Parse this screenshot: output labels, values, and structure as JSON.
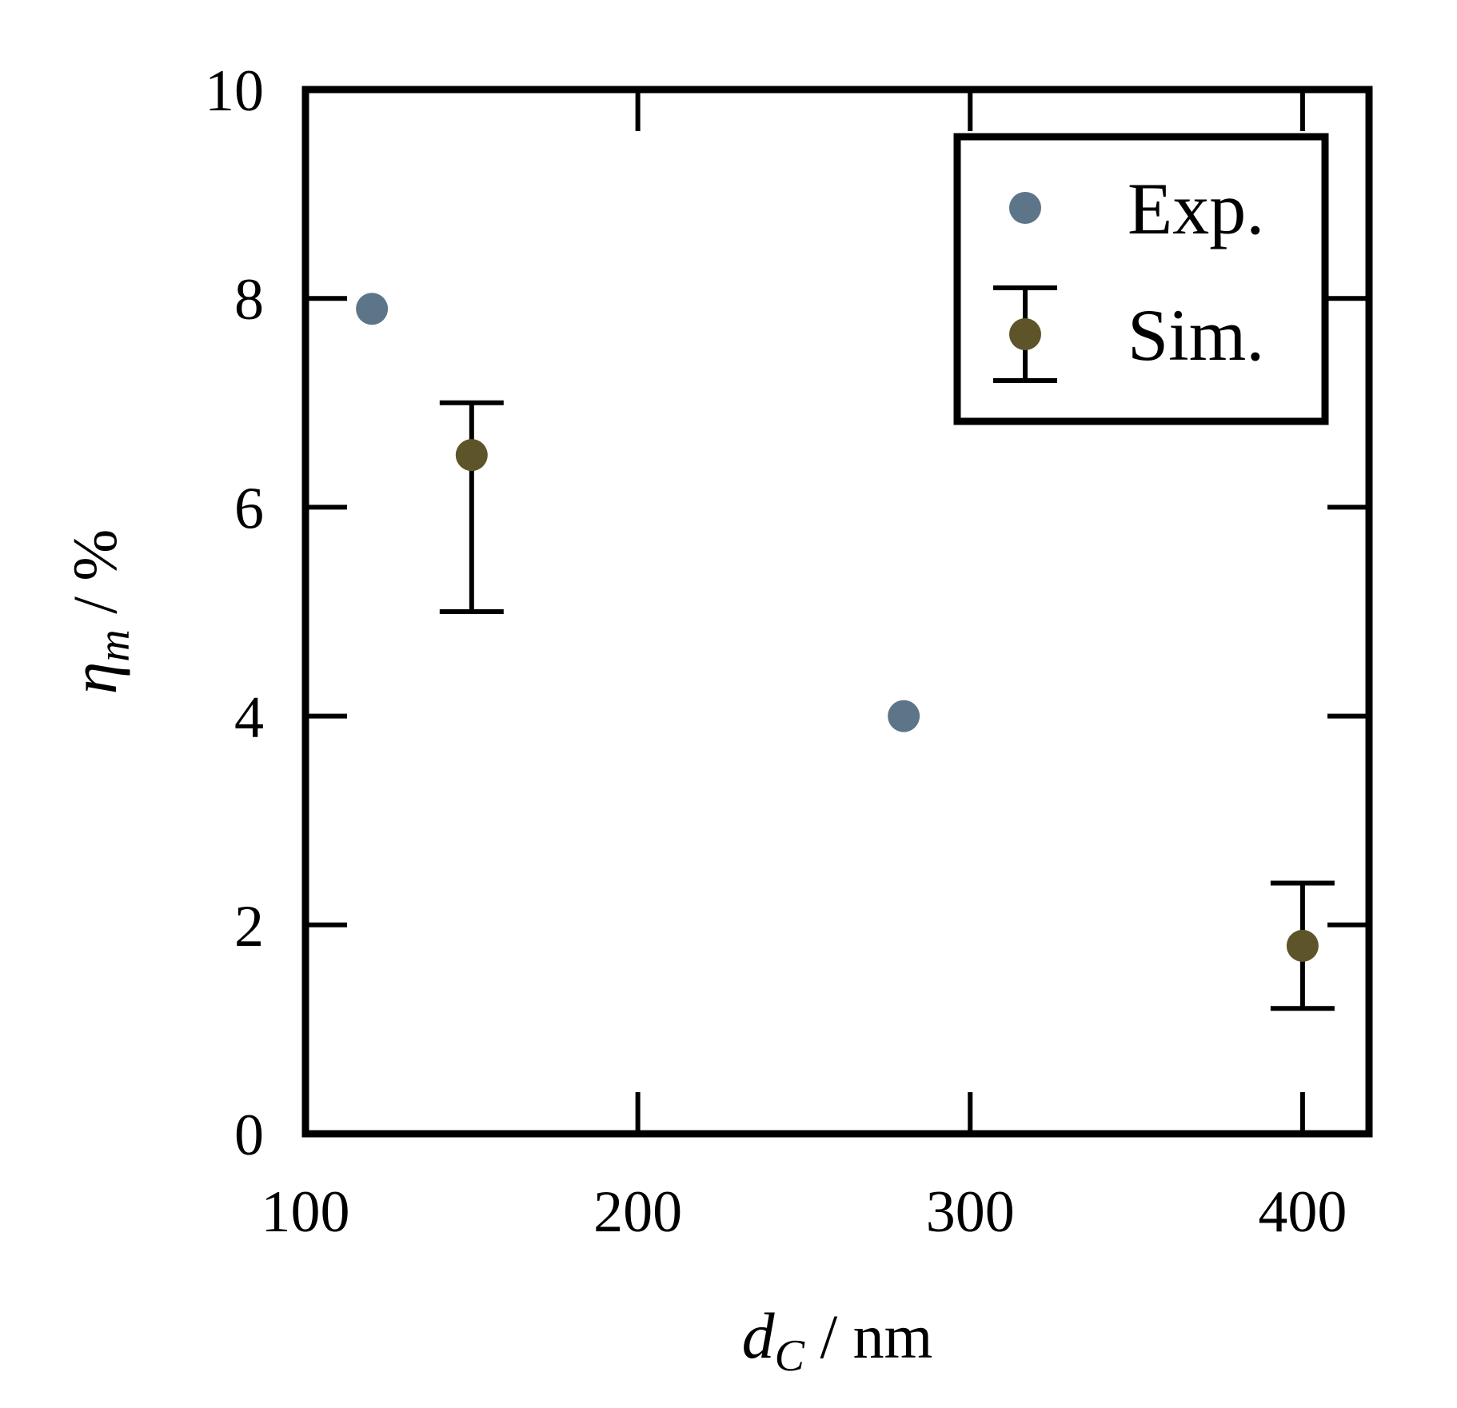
{
  "chart_data": {
    "type": "scatter",
    "title": "",
    "xlabel": {
      "var": "d",
      "sub": "C",
      "unit": " / nm"
    },
    "ylabel": {
      "var": "η",
      "sub": "m",
      "unit": " / %"
    },
    "xlim": [
      100,
      420
    ],
    "ylim": [
      0,
      10
    ],
    "x_ticks": [
      100,
      200,
      300,
      400
    ],
    "y_ticks": [
      0,
      2,
      4,
      6,
      8,
      10
    ],
    "grid": false,
    "legend_position": "top-right",
    "series": [
      {
        "name": "Exp.",
        "color": "#5d7589",
        "marker": "circle",
        "points": [
          {
            "x": 120,
            "y": 7.9
          },
          {
            "x": 280,
            "y": 4.0
          }
        ]
      },
      {
        "name": "Sim.",
        "color": "#5e5429",
        "marker": "circle-errorbar",
        "points": [
          {
            "x": 150,
            "y": 6.5,
            "ymin": 5.0,
            "ymax": 7.0
          },
          {
            "x": 400,
            "y": 1.8,
            "ymin": 1.2,
            "ymax": 2.4
          }
        ]
      }
    ]
  }
}
